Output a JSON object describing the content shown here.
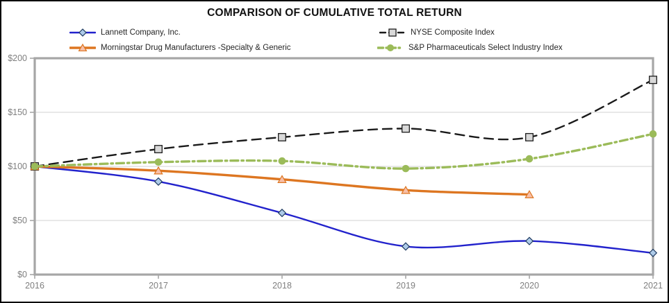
{
  "title": "COMPARISON OF CUMULATIVE TOTAL RETURN",
  "colors": {
    "frame": "#A6A6A6",
    "gridline": "#D9D9D9",
    "axis_text": "#7F7F7F",
    "legend_text": "#262626"
  },
  "chart_data": {
    "type": "line",
    "title": "COMPARISON OF CUMULATIVE TOTAL RETURN",
    "categories": [
      "2016",
      "2017",
      "2018",
      "2019",
      "2020",
      "2021"
    ],
    "series": [
      {
        "name": "Lannett Company, Inc.",
        "color": "#2222CC",
        "line": "solid",
        "width": 2.4,
        "marker": "diamond",
        "marker_fill": "#AECBE8",
        "marker_stroke": "#1F3A60",
        "values": [
          100,
          86,
          57,
          26,
          31,
          20
        ]
      },
      {
        "name": "NYSE Composite Index",
        "color": "#1A1A1A",
        "line": "dashed",
        "width": 2.4,
        "marker": "square",
        "marker_fill": "#D9D9D9",
        "marker_stroke": "#1A1A1A",
        "values": [
          100,
          116,
          127,
          135,
          127,
          180
        ]
      },
      {
        "name": "Morningstar Drug Manufacturers -Specialty & Generic",
        "color": "#DD7621",
        "line": "solid",
        "width": 3.4,
        "marker": "triangle",
        "marker_fill": "#F7BFA8",
        "marker_stroke": "#DD7621",
        "values": [
          100,
          96,
          88,
          78,
          74,
          null
        ]
      },
      {
        "name": "S&P Pharmaceuticals Select Industry Index",
        "color": "#9BBB59",
        "line": "dashdot",
        "width": 3.4,
        "marker": "circle",
        "marker_fill": "#9BBB59",
        "marker_stroke": "#9BBB59",
        "values": [
          100,
          104,
          105,
          98,
          107,
          130
        ]
      }
    ],
    "xlabel": "",
    "ylabel": "",
    "ylim": [
      0,
      200
    ],
    "yticks": [
      {
        "value": 0,
        "label": "$0"
      },
      {
        "value": 50,
        "label": "$50"
      },
      {
        "value": 100,
        "label": "$100"
      },
      {
        "value": 150,
        "label": "$150"
      },
      {
        "value": 200,
        "label": "$200"
      }
    ],
    "grid": "horizontal",
    "legend_position": "top",
    "smoothed_lines": true
  }
}
